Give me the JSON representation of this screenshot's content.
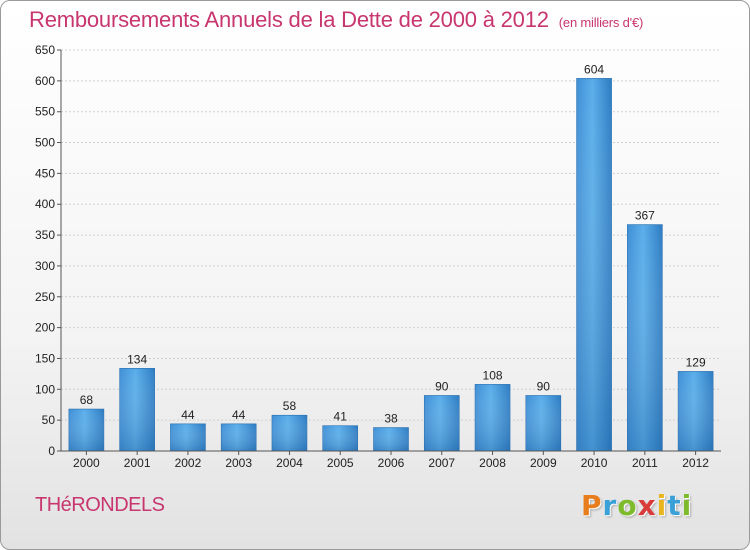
{
  "header": {
    "title": "Remboursements Annuels de la Dette de 2000 à 2012",
    "unit": "(en milliers d'€)"
  },
  "footer": {
    "commune": "THéRONDELS",
    "logo_letters": [
      {
        "ch": "P",
        "color": "#e87d1e"
      },
      {
        "ch": "r",
        "color": "#3aa0d8"
      },
      {
        "ch": "o",
        "color": "#7dbb2c"
      },
      {
        "ch": "x",
        "color": "#d93a3a"
      },
      {
        "ch": "i",
        "color": "#e8b51e"
      },
      {
        "ch": "t",
        "color": "#3aa0d8"
      },
      {
        "ch": "i",
        "color": "#7dbb2c"
      }
    ]
  },
  "chart_data": {
    "type": "bar",
    "title": "Remboursements Annuels de la Dette de 2000 à 2012",
    "subtitle": "(en milliers d'€)",
    "categories": [
      "2000",
      "2001",
      "2002",
      "2003",
      "2004",
      "2005",
      "2006",
      "2007",
      "2008",
      "2009",
      "2010",
      "2011",
      "2012"
    ],
    "values": [
      68,
      134,
      44,
      44,
      58,
      41,
      38,
      90,
      108,
      90,
      604,
      367,
      129
    ],
    "ylim": [
      0,
      650
    ],
    "yticks": [
      0,
      50,
      100,
      150,
      200,
      250,
      300,
      350,
      400,
      450,
      500,
      550,
      600,
      650
    ],
    "grid": true,
    "bar_color": "#4a9ede",
    "bar_color_dark": "#2f7fc4"
  }
}
